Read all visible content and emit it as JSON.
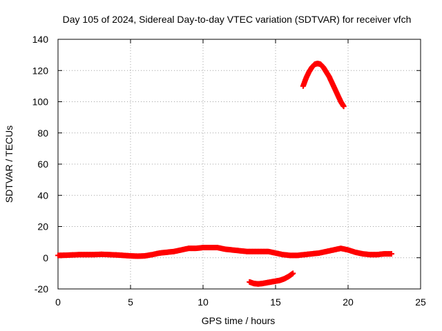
{
  "chart_data": {
    "type": "scatter",
    "title": "Day 105 of 2024, Sidereal Day-to-day VTEC variation (SDTVAR) for receiver vfch",
    "xlabel": "GPS time / hours",
    "ylabel": "SDTVAR / TECUs",
    "xlim": [
      0,
      25
    ],
    "ylim": [
      -20,
      140
    ],
    "xticks": [
      0,
      5,
      10,
      15,
      20,
      25
    ],
    "yticks": [
      -20,
      0,
      20,
      40,
      60,
      80,
      100,
      120,
      140
    ],
    "grid": true,
    "marker": "plus",
    "series_color": "#ff0000",
    "series": [
      {
        "name": "main",
        "x": [
          0.0,
          0.5,
          1.0,
          1.5,
          2.0,
          2.5,
          3.0,
          3.5,
          4.0,
          4.5,
          5.0,
          5.5,
          6.0,
          6.5,
          7.0,
          7.5,
          8.0,
          8.5,
          9.0,
          9.5,
          10.0,
          10.5,
          11.0,
          11.5,
          12.0,
          12.5,
          13.0,
          13.5,
          14.0,
          14.5,
          15.0,
          15.5,
          16.0,
          16.5,
          17.0,
          17.5,
          18.0,
          18.5,
          19.0,
          19.5,
          20.0,
          20.5,
          21.0,
          21.5,
          22.0,
          22.5,
          23.0
        ],
        "y": [
          1.5,
          1.6,
          1.8,
          2.0,
          2.0,
          2.0,
          2.2,
          2.0,
          1.8,
          1.5,
          1.2,
          1.0,
          1.2,
          2.0,
          3.0,
          3.5,
          4.0,
          5.0,
          6.0,
          6.0,
          6.5,
          6.5,
          6.5,
          5.5,
          5.0,
          4.5,
          4.0,
          4.0,
          4.0,
          4.0,
          3.0,
          2.0,
          1.5,
          1.5,
          2.0,
          2.5,
          3.0,
          4.0,
          5.0,
          6.0,
          5.0,
          3.5,
          2.5,
          2.0,
          2.0,
          2.5,
          2.5
        ]
      },
      {
        "name": "negative-arc",
        "x": [
          13.2,
          13.5,
          13.8,
          14.1,
          14.4,
          14.7,
          15.0,
          15.3,
          15.6,
          15.9,
          16.2
        ],
        "y": [
          -15.5,
          -16.5,
          -16.8,
          -16.5,
          -16.0,
          -15.5,
          -15.0,
          -14.5,
          -13.5,
          -12.0,
          -10.0
        ]
      },
      {
        "name": "high-arc",
        "x": [
          16.9,
          17.1,
          17.3,
          17.5,
          17.7,
          17.9,
          18.1,
          18.3,
          18.5,
          18.7,
          18.9,
          19.1,
          19.3,
          19.5,
          19.7
        ],
        "y": [
          110,
          115,
          119,
          122,
          124,
          124.5,
          124,
          122,
          119,
          116,
          112,
          108,
          104,
          100,
          97
        ]
      }
    ]
  }
}
